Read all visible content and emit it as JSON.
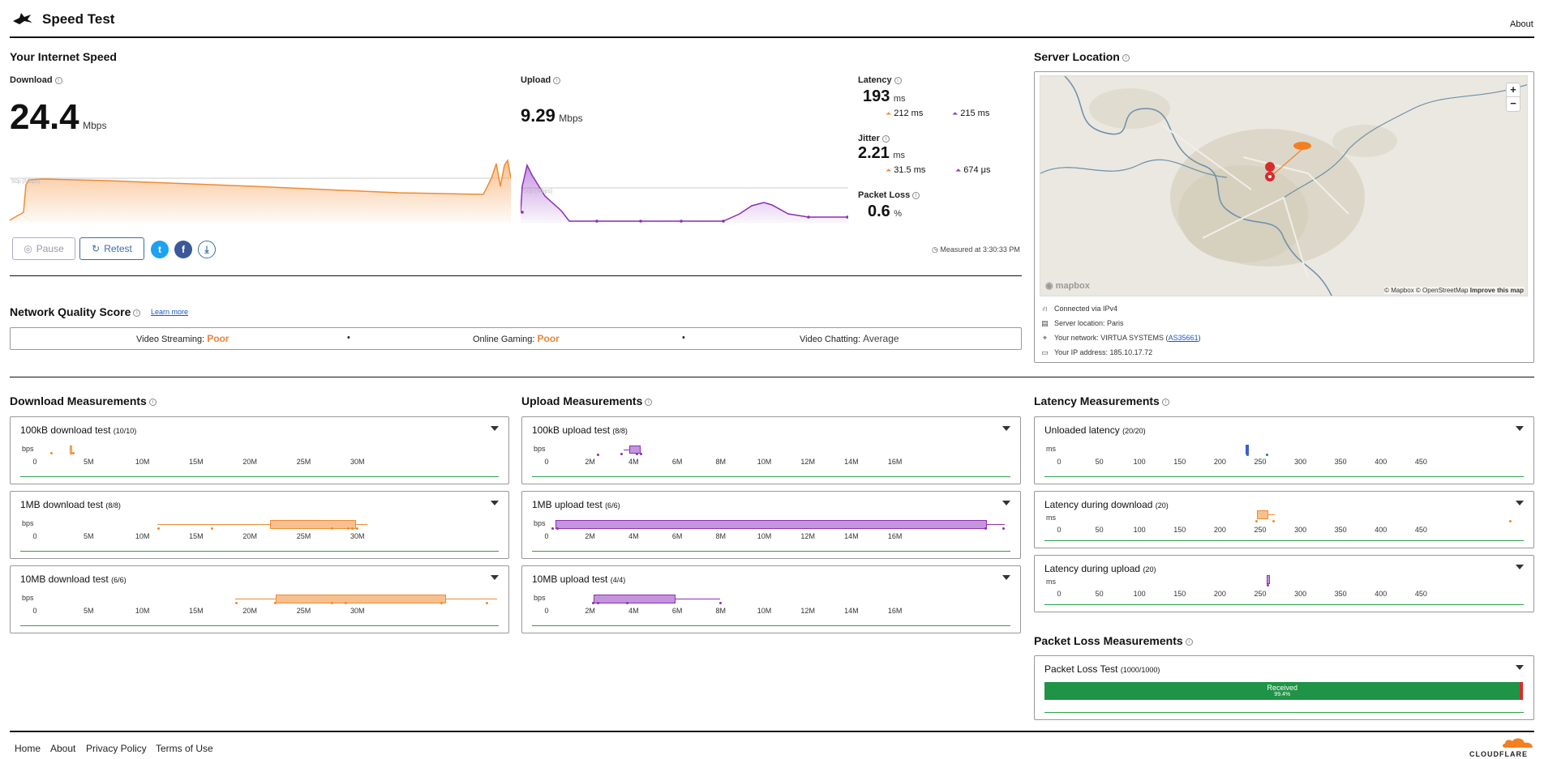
{
  "header": {
    "title": "Speed Test",
    "about": "About"
  },
  "speed": {
    "section_title": "Your Internet Speed",
    "download": {
      "label": "Download",
      "value": "24.4",
      "unit": "Mbps",
      "chart_ref": "50p (Mbps)"
    },
    "upload": {
      "label": "Upload",
      "value": "9.29",
      "unit": "Mbps",
      "chart_ref": "50p (Mbps)"
    },
    "latency": {
      "label": "Latency",
      "value": "193",
      "unit": "ms",
      "down": "212 ms",
      "up": "215 ms"
    },
    "jitter": {
      "label": "Jitter",
      "value": "2.21",
      "unit": "ms",
      "down": "31.5 ms",
      "up": "674 μs"
    },
    "packet_loss": {
      "label": "Packet Loss",
      "value": "0.6",
      "unit": "%"
    },
    "pause": "Pause",
    "retest": "Retest",
    "measured_at": "Measured at 3:30:33 PM"
  },
  "nqs": {
    "title": "Network Quality Score",
    "learn_more": "Learn more",
    "video_streaming_label": "Video Streaming:",
    "video_streaming": "Poor",
    "online_gaming_label": "Online Gaming:",
    "online_gaming": "Poor",
    "video_chatting_label": "Video Chatting:",
    "video_chatting": "Average",
    "colors": {
      "poor": "#e8843a",
      "average": "#444444"
    }
  },
  "server": {
    "title": "Server Location",
    "map_attribution": "© Mapbox © OpenStreetMap",
    "improve": "Improve this map",
    "mapbox": "mapbox",
    "zoom_in": "+",
    "zoom_out": "−",
    "connected": "Connected via IPv4",
    "location": "Server location: Paris",
    "network_prefix": "Your network: VIRTUA SYSTEMS (",
    "asn": "AS35661",
    "network_suffix": ")",
    "ip": "Your IP address: 185.10.17.72"
  },
  "download_measurements": {
    "title": "Download Measurements",
    "unit": "bps",
    "ticks": [
      "0",
      "5M",
      "10M",
      "15M",
      "20M",
      "25M",
      "30M"
    ],
    "tests": [
      {
        "name": "100kB download test",
        "count": "(10/10)"
      },
      {
        "name": "1MB download test",
        "count": "(8/8)"
      },
      {
        "name": "10MB download test",
        "count": "(6/6)"
      }
    ]
  },
  "upload_measurements": {
    "title": "Upload Measurements",
    "unit": "bps",
    "ticks": [
      "0",
      "2M",
      "4M",
      "6M",
      "8M",
      "10M",
      "12M",
      "14M",
      "16M"
    ],
    "tests": [
      {
        "name": "100kB upload test",
        "count": "(8/8)"
      },
      {
        "name": "1MB upload test",
        "count": "(6/6)"
      },
      {
        "name": "10MB upload test",
        "count": "(4/4)"
      }
    ]
  },
  "latency_measurements": {
    "title": "Latency Measurements",
    "unit": "ms",
    "ticks": [
      "0",
      "50",
      "100",
      "150",
      "200",
      "250",
      "300",
      "350",
      "400",
      "450"
    ],
    "tests": [
      {
        "name": "Unloaded latency",
        "count": "(20/20)"
      },
      {
        "name": "Latency during download",
        "count": "(20)"
      },
      {
        "name": "Latency during upload",
        "count": "(20)"
      }
    ]
  },
  "packet_loss_measurements": {
    "title": "Packet Loss Measurements",
    "test_name": "Packet Loss Test",
    "count": "(1000/1000)",
    "received_label": "Received",
    "received_pct": "99.4%",
    "received_fraction": 0.994
  },
  "footer": {
    "home": "Home",
    "about": "About",
    "privacy": "Privacy Policy",
    "terms": "Terms of Use",
    "brand": "CLOUDFLARE"
  }
}
